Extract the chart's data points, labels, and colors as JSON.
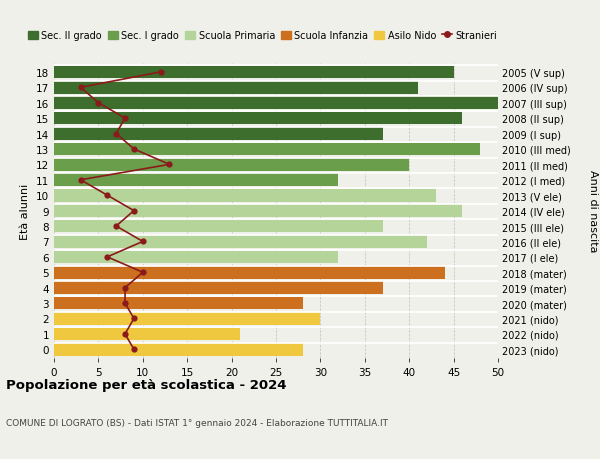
{
  "ages": [
    18,
    17,
    16,
    15,
    14,
    13,
    12,
    11,
    10,
    9,
    8,
    7,
    6,
    5,
    4,
    3,
    2,
    1,
    0
  ],
  "labels_right": [
    "2005 (V sup)",
    "2006 (IV sup)",
    "2007 (III sup)",
    "2008 (II sup)",
    "2009 (I sup)",
    "2010 (III med)",
    "2011 (II med)",
    "2012 (I med)",
    "2013 (V ele)",
    "2014 (IV ele)",
    "2015 (III ele)",
    "2016 (II ele)",
    "2017 (I ele)",
    "2018 (mater)",
    "2019 (mater)",
    "2020 (mater)",
    "2021 (nido)",
    "2022 (nido)",
    "2023 (nido)"
  ],
  "bar_values": [
    45,
    41,
    50,
    46,
    37,
    48,
    40,
    32,
    43,
    46,
    37,
    42,
    32,
    44,
    37,
    28,
    30,
    21,
    28
  ],
  "bar_colors": [
    "#3d6e2e",
    "#3d6e2e",
    "#3d6e2e",
    "#3d6e2e",
    "#3d6e2e",
    "#6a9e4a",
    "#6a9e4a",
    "#6a9e4a",
    "#b5d49a",
    "#b5d49a",
    "#b5d49a",
    "#b5d49a",
    "#b5d49a",
    "#cc7020",
    "#cc7020",
    "#cc7020",
    "#f0c840",
    "#f0c840",
    "#f0c840"
  ],
  "stranieri_values": [
    12,
    3,
    5,
    8,
    7,
    9,
    13,
    3,
    6,
    9,
    7,
    10,
    6,
    10,
    8,
    8,
    9,
    8,
    9
  ],
  "stranieri_color": "#8b1a1a",
  "legend_items": [
    {
      "label": "Sec. II grado",
      "color": "#3d6e2e"
    },
    {
      "label": "Sec. I grado",
      "color": "#6a9e4a"
    },
    {
      "label": "Scuola Primaria",
      "color": "#b5d49a"
    },
    {
      "label": "Scuola Infanzia",
      "color": "#cc7020"
    },
    {
      "label": "Asilo Nido",
      "color": "#f0c840"
    },
    {
      "label": "Stranieri",
      "color": "#8b1a1a"
    }
  ],
  "ylabel_left": "Età alunni",
  "ylabel_right": "Anni di nascita",
  "xlim": [
    0,
    50
  ],
  "xticks": [
    0,
    5,
    10,
    15,
    20,
    25,
    30,
    35,
    40,
    45,
    50
  ],
  "title": "Popolazione per età scolastica - 2024",
  "subtitle": "COMUNE DI LOGRATO (BS) - Dati ISTAT 1° gennaio 2024 - Elaborazione TUTTITALIA.IT",
  "background_color": "#f0f0eb",
  "plot_background": "#f0f0eb"
}
